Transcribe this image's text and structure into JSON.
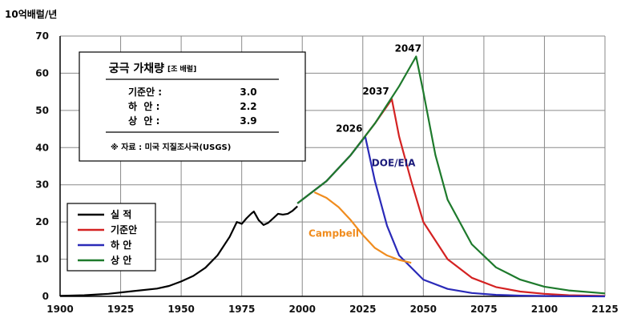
{
  "chart_data": {
    "type": "line",
    "ylabel": "10억배럴/년",
    "xlim": [
      1900,
      2125
    ],
    "ylim": [
      0,
      70
    ],
    "xticks": [
      1900,
      1925,
      1950,
      1975,
      2000,
      2025,
      2050,
      2075,
      2100,
      2125
    ],
    "yticks": [
      0,
      10,
      20,
      30,
      40,
      50,
      60,
      70
    ],
    "grid": true,
    "series": [
      {
        "name": "실 적",
        "color": "#000000",
        "x": [
          1900,
          1910,
          1920,
          1930,
          1940,
          1945,
          1950,
          1955,
          1960,
          1965,
          1970,
          1973,
          1975,
          1977,
          1979,
          1980,
          1982,
          1984,
          1986,
          1988,
          1990,
          1992,
          1994,
          1996,
          1998
        ],
        "y": [
          0.15,
          0.3,
          0.7,
          1.4,
          2.1,
          2.8,
          4.0,
          5.5,
          7.7,
          11.0,
          16.0,
          20.0,
          19.5,
          21.0,
          22.3,
          22.8,
          20.5,
          19.2,
          19.8,
          21.0,
          22.2,
          22.0,
          22.2,
          23.0,
          24.2
        ]
      },
      {
        "name": "기준안",
        "color": "#d42222",
        "x": [
          1998,
          2010,
          2020,
          2030,
          2037,
          2040,
          2045,
          2050,
          2060,
          2070,
          2080,
          2090,
          2100,
          2110,
          2125
        ],
        "y": [
          25.0,
          31.0,
          38.0,
          46.5,
          53.0,
          43.0,
          31.0,
          20.0,
          10.0,
          5.0,
          2.5,
          1.3,
          0.7,
          0.3,
          0.1
        ]
      },
      {
        "name": "하 안",
        "color": "#2a2ab8",
        "x": [
          1998,
          2010,
          2020,
          2026,
          2030,
          2035,
          2040,
          2050,
          2060,
          2070,
          2080,
          2090,
          2100,
          2110,
          2125
        ],
        "y": [
          25.0,
          31.0,
          38.0,
          43.0,
          31.0,
          19.0,
          11.0,
          4.5,
          2.0,
          0.9,
          0.4,
          0.2,
          0.1,
          0.05,
          0.0
        ]
      },
      {
        "name": "상 안",
        "color": "#1e7a2c",
        "x": [
          1998,
          2010,
          2020,
          2030,
          2040,
          2047,
          2050,
          2055,
          2060,
          2070,
          2080,
          2090,
          2100,
          2110,
          2125
        ],
        "y": [
          25.0,
          31.0,
          38.0,
          46.5,
          56.5,
          64.5,
          55.0,
          38.0,
          26.0,
          14.0,
          7.8,
          4.5,
          2.6,
          1.6,
          0.8
        ]
      },
      {
        "name": "Campbell",
        "color": "#f08c1e",
        "x": [
          2005,
          2010,
          2015,
          2020,
          2025,
          2030,
          2035,
          2040,
          2045
        ],
        "y": [
          28.0,
          26.5,
          24.0,
          20.5,
          16.5,
          13.0,
          11.0,
          9.8,
          9.0
        ]
      }
    ],
    "annotations": [
      {
        "text": "2047",
        "x": 2047,
        "y": 64.5
      },
      {
        "text": "2037",
        "x": 2037,
        "y": 53.0
      },
      {
        "text": "2026",
        "x": 2026,
        "y": 43.0
      },
      {
        "text": "DOE/EIA",
        "x": 2041,
        "y": 35
      },
      {
        "text": "Campbell",
        "x": 2013,
        "y": 16
      }
    ],
    "legend": {
      "placement": "bottom-left",
      "entries": [
        "실 적",
        "기준안",
        "하 안",
        "상 안"
      ]
    }
  },
  "infobox": {
    "title": "궁극 가채량",
    "unit": "[조 배럴]",
    "rows": [
      {
        "label": "기준안 :",
        "value": "3.0"
      },
      {
        "label": "하  안 :",
        "value": "2.2"
      },
      {
        "label": "상  안 :",
        "value": "3.9"
      }
    ],
    "source": "※ 자료 : 미국 지질조사국(USGS)"
  }
}
